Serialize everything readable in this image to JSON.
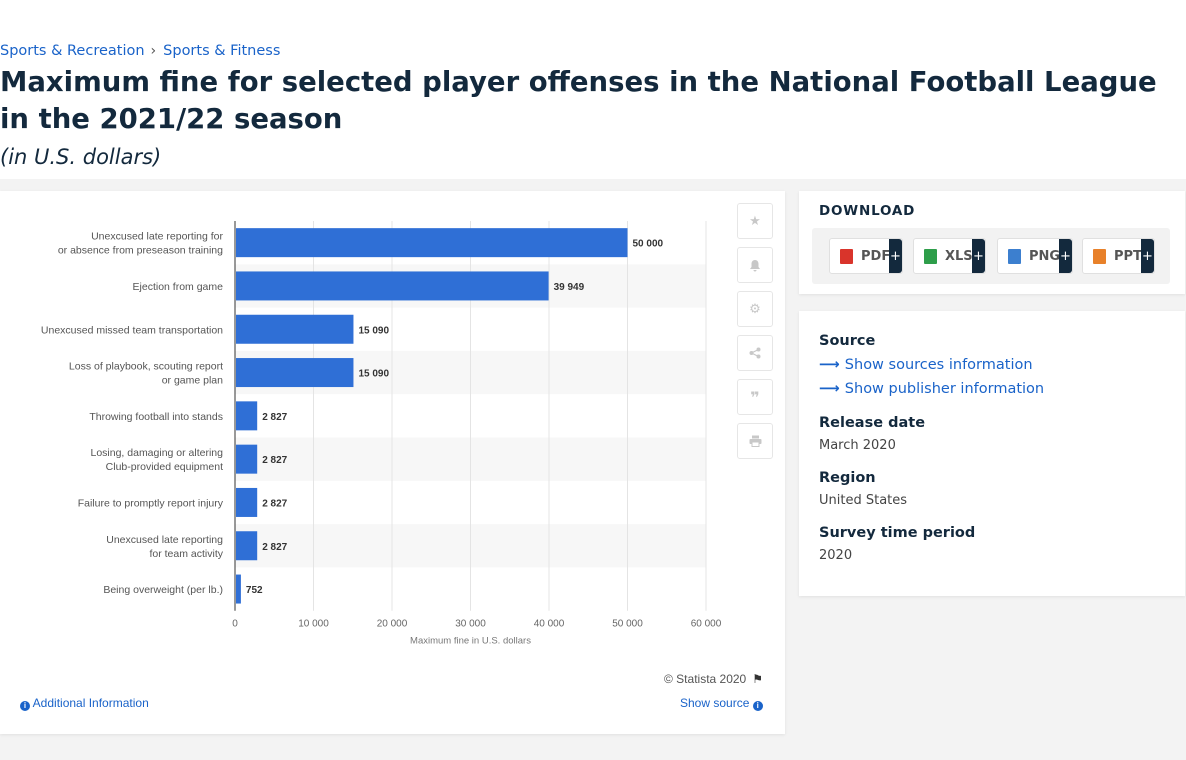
{
  "breadcrumb": [
    "Sports & Recreation",
    "Sports & Fitness"
  ],
  "title": "Maximum fine for selected player offenses in the National Football League in the 2021/22 season",
  "subtitle": "(in U.S. dollars)",
  "chart_data": {
    "type": "bar",
    "orientation": "horizontal",
    "categories": [
      [
        "Unexcused late reporting for",
        "or absence from preseason training"
      ],
      [
        "Ejection from game"
      ],
      [
        "Unexcused missed team transportation"
      ],
      [
        "Loss of playbook, scouting report",
        "or game plan"
      ],
      [
        "Throwing football into stands"
      ],
      [
        "Losing, damaging or altering",
        "Club-provided equipment"
      ],
      [
        "Failure to promptly report injury"
      ],
      [
        "Unexcused late reporting",
        "for team activity"
      ],
      [
        "Being overweight (per lb.)"
      ]
    ],
    "values": [
      50000,
      39949,
      15090,
      15090,
      2827,
      2827,
      2827,
      2827,
      752
    ],
    "value_labels": [
      "50 000",
      "39 949",
      "15 090",
      "15 090",
      "2 827",
      "2 827",
      "2 827",
      "2 827",
      "752"
    ],
    "xticks": [
      0,
      10000,
      20000,
      30000,
      40000,
      50000,
      60000
    ],
    "xtick_labels": [
      "0",
      "10 000",
      "20 000",
      "30 000",
      "40 000",
      "50 000",
      "60 000"
    ],
    "xlabel": "Maximum fine in U.S. dollars",
    "xlim": [
      0,
      60000
    ],
    "grid": true,
    "bar_color": "#2f6fd6"
  },
  "tools": [
    "star-icon",
    "bell-icon",
    "gear-icon",
    "share-icon",
    "quote-icon",
    "print-icon"
  ],
  "chart_footer": {
    "copyright": "© Statista 2020",
    "additional": "Additional Information",
    "show_source": "Show source"
  },
  "download": {
    "title": "DOWNLOAD",
    "buttons": [
      {
        "label": "PDF",
        "color": "#d9342b"
      },
      {
        "label": "XLS",
        "color": "#2e9e4a"
      },
      {
        "label": "PNG",
        "color": "#3c7fcf"
      },
      {
        "label": "PPT",
        "color": "#e8812a"
      }
    ],
    "plus": "+"
  },
  "meta": {
    "source_heading": "Source",
    "show_sources": "Show sources information",
    "show_publisher": "Show publisher information",
    "release_heading": "Release date",
    "release_value": "March 2020",
    "region_heading": "Region",
    "region_value": "United States",
    "survey_heading": "Survey time period",
    "survey_value": "2020"
  }
}
